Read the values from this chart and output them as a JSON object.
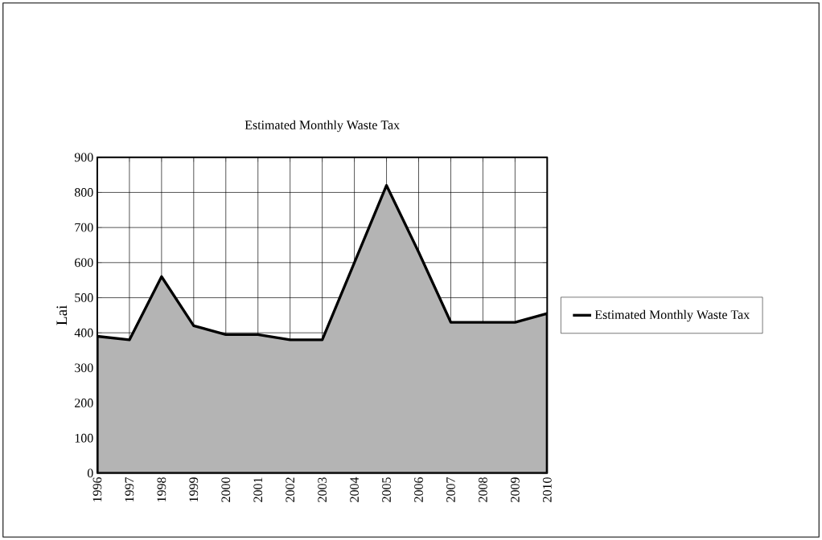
{
  "chart_data": {
    "type": "area",
    "title": "Estimated Monthly Waste Tax",
    "ylabel": "Lai",
    "categories": [
      "1996",
      "1997",
      "1998",
      "1999",
      "2000",
      "2001",
      "2002",
      "2003",
      "2004",
      "2005",
      "2006",
      "2007",
      "2008",
      "2009",
      "2010"
    ],
    "series": [
      {
        "name": "Estimated Monthly Waste Tax",
        "color": "#b4b4b4",
        "values": [
          390,
          380,
          560,
          420,
          395,
          395,
          380,
          380,
          600,
          820,
          630,
          430,
          430,
          430,
          455
        ]
      }
    ],
    "ylim": [
      0,
      900
    ],
    "yticks": [
      0,
      100,
      200,
      300,
      400,
      500,
      600,
      700,
      800,
      900
    ],
    "grid": true,
    "legend": "right"
  }
}
